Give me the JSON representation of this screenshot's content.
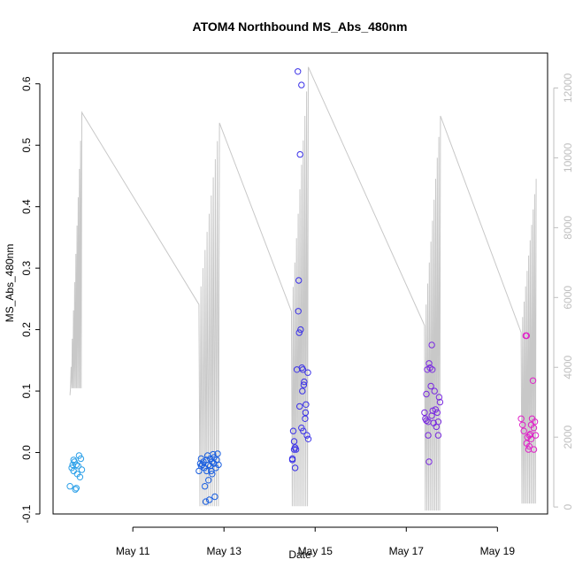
{
  "chart_data": {
    "type": "scatter",
    "title": "ATOM4 Northbound MS_Abs_480nm",
    "xlabel": "Date",
    "ylabel": "MS_Abs_480nm",
    "x_ticks": [
      {
        "day": 11,
        "label": "May 11"
      },
      {
        "day": 13,
        "label": "May 13"
      },
      {
        "day": 15,
        "label": "May 15"
      },
      {
        "day": 17,
        "label": "May 17"
      },
      {
        "day": 19,
        "label": "May 19"
      }
    ],
    "xlim_days": [
      9.25,
      20.1
    ],
    "ylim": [
      -0.1,
      0.65
    ],
    "y_ticks": [
      -0.1,
      0.0,
      0.1,
      0.2,
      0.3,
      0.4,
      0.5,
      0.6
    ],
    "y2lim": [
      -200,
      13000
    ],
    "y2_ticks": [
      0,
      2000,
      4000,
      6000,
      8000,
      10000,
      12000
    ],
    "colors": {
      "right_axis": "#bfbfbf",
      "secondary_line": "#c8c8c8",
      "frame": "#000000"
    },
    "series": [
      {
        "color": "#2a9fe8",
        "points": [
          [
            9.62,
            -0.055
          ],
          [
            9.66,
            -0.025
          ],
          [
            9.68,
            -0.02
          ],
          [
            9.7,
            -0.03
          ],
          [
            9.72,
            -0.015
          ],
          [
            9.74,
            -0.06
          ],
          [
            9.76,
            -0.058
          ],
          [
            9.78,
            -0.035
          ],
          [
            9.8,
            -0.022
          ],
          [
            9.82,
            -0.005
          ],
          [
            9.84,
            -0.04
          ],
          [
            9.86,
            -0.01
          ],
          [
            9.88,
            -0.028
          ],
          [
            9.7,
            -0.012
          ],
          [
            9.76,
            -0.02
          ]
        ]
      },
      {
        "color": "#1a5fe0",
        "points": [
          [
            12.45,
            -0.03
          ],
          [
            12.48,
            -0.018
          ],
          [
            12.5,
            -0.01
          ],
          [
            12.52,
            -0.02
          ],
          [
            12.55,
            -0.015
          ],
          [
            12.57,
            -0.025
          ],
          [
            12.6,
            -0.08
          ],
          [
            12.62,
            -0.012
          ],
          [
            12.64,
            -0.005
          ],
          [
            12.66,
            -0.02
          ],
          [
            12.68,
            -0.077
          ],
          [
            12.7,
            -0.01
          ],
          [
            12.72,
            -0.03
          ],
          [
            12.74,
            -0.015
          ],
          [
            12.76,
            -0.003
          ],
          [
            12.78,
            -0.018
          ],
          [
            12.8,
            -0.072
          ],
          [
            12.82,
            -0.025
          ],
          [
            12.84,
            -0.012
          ],
          [
            12.86,
            -0.002
          ],
          [
            12.88,
            -0.02
          ],
          [
            12.66,
            -0.045
          ],
          [
            12.58,
            -0.055
          ],
          [
            12.7,
            -0.022
          ],
          [
            12.78,
            -0.008
          ],
          [
            12.5,
            -0.022
          ],
          [
            12.62,
            -0.03
          ],
          [
            12.74,
            -0.035
          ]
        ]
      },
      {
        "color": "#3a30e8",
        "points": [
          [
            14.5,
            -0.01
          ],
          [
            14.52,
            0.035
          ],
          [
            14.54,
            0.018
          ],
          [
            14.56,
            0.008
          ],
          [
            14.58,
            0.005
          ],
          [
            14.6,
            0.135
          ],
          [
            14.62,
            0.62
          ],
          [
            14.63,
            0.23
          ],
          [
            14.64,
            0.28
          ],
          [
            14.65,
            0.195
          ],
          [
            14.66,
            0.075
          ],
          [
            14.67,
            0.485
          ],
          [
            14.68,
            0.2
          ],
          [
            14.7,
            0.598
          ],
          [
            14.71,
            0.138
          ],
          [
            14.72,
            0.1
          ],
          [
            14.73,
            0.135
          ],
          [
            14.74,
            0.035
          ],
          [
            14.75,
            0.11
          ],
          [
            14.76,
            0.115
          ],
          [
            14.78,
            0.055
          ],
          [
            14.79,
            0.065
          ],
          [
            14.8,
            0.078
          ],
          [
            14.82,
            0.028
          ],
          [
            14.84,
            0.13
          ],
          [
            14.85,
            0.022
          ],
          [
            14.56,
            -0.025
          ],
          [
            14.54,
            0.005
          ],
          [
            14.7,
            0.04
          ],
          [
            14.5,
            -0.012
          ]
        ]
      },
      {
        "color": "#7a2ae0",
        "points": [
          [
            17.4,
            0.065
          ],
          [
            17.42,
            0.055
          ],
          [
            17.44,
            0.095
          ],
          [
            17.46,
            0.135
          ],
          [
            17.48,
            0.05
          ],
          [
            17.5,
            0.145
          ],
          [
            17.52,
            0.138
          ],
          [
            17.54,
            0.108
          ],
          [
            17.56,
            0.175
          ],
          [
            17.57,
            0.135
          ],
          [
            17.58,
            0.068
          ],
          [
            17.6,
            0.048
          ],
          [
            17.62,
            0.1
          ],
          [
            17.64,
            0.07
          ],
          [
            17.66,
            0.042
          ],
          [
            17.68,
            0.065
          ],
          [
            17.7,
            0.05
          ],
          [
            17.72,
            0.09
          ],
          [
            17.74,
            0.082
          ],
          [
            17.5,
            -0.015
          ],
          [
            17.48,
            0.028
          ],
          [
            17.7,
            0.028
          ],
          [
            17.56,
            0.06
          ],
          [
            17.44,
            0.052
          ]
        ]
      },
      {
        "color": "#e020c8",
        "points": [
          [
            19.52,
            0.055
          ],
          [
            19.55,
            0.045
          ],
          [
            19.58,
            0.035
          ],
          [
            19.62,
            0.19
          ],
          [
            19.64,
            0.19
          ],
          [
            19.66,
            0.025
          ],
          [
            19.68,
            0.005
          ],
          [
            19.7,
            0.01
          ],
          [
            19.72,
            0.03
          ],
          [
            19.74,
            0.045
          ],
          [
            19.76,
            0.055
          ],
          [
            19.78,
            0.117
          ],
          [
            19.8,
            0.04
          ],
          [
            19.82,
            0.05
          ],
          [
            19.84,
            0.028
          ],
          [
            19.7,
            0.028
          ],
          [
            19.64,
            0.015
          ],
          [
            19.8,
            0.005
          ],
          [
            19.74,
            0.022
          ]
        ]
      }
    ]
  }
}
